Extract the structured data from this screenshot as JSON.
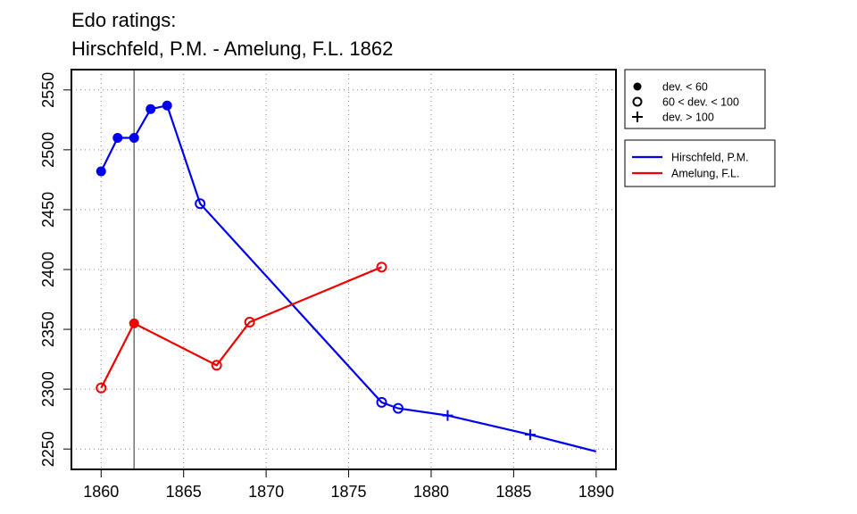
{
  "chart_data": {
    "type": "line",
    "title": [
      "Edo ratings:",
      "Hirschfeld, P.M. - Amelung, F.L. 1862"
    ],
    "xlabel": "",
    "ylabel": "",
    "xlim": [
      1858.2,
      1891.2
    ],
    "ylim": [
      2233,
      2567
    ],
    "x_ticks": [
      1860,
      1865,
      1870,
      1875,
      1880,
      1885,
      1890
    ],
    "y_ticks": [
      2250,
      2300,
      2350,
      2400,
      2450,
      2500,
      2550
    ],
    "grid": "dotted",
    "reference_line_x": 1862,
    "marker_legend": [
      {
        "symbol": "filled",
        "label": "dev. < 60"
      },
      {
        "symbol": "open",
        "label": "60 < dev. < 100"
      },
      {
        "symbol": "plus",
        "label": "dev. > 100"
      }
    ],
    "series": [
      {
        "name": "Hirschfeld, P.M.",
        "color": "#0000ee",
        "points": [
          {
            "x": 1860,
            "y": 2482,
            "marker": "filled"
          },
          {
            "x": 1861,
            "y": 2510,
            "marker": "filled"
          },
          {
            "x": 1862,
            "y": 2510,
            "marker": "filled"
          },
          {
            "x": 1863,
            "y": 2534,
            "marker": "filled"
          },
          {
            "x": 1864,
            "y": 2537,
            "marker": "filled"
          },
          {
            "x": 1866,
            "y": 2455,
            "marker": "open"
          },
          {
            "x": 1877,
            "y": 2289,
            "marker": "open"
          },
          {
            "x": 1878,
            "y": 2284,
            "marker": "open"
          },
          {
            "x": 1881,
            "y": 2278,
            "marker": "plus"
          },
          {
            "x": 1886,
            "y": 2262,
            "marker": "plus"
          },
          {
            "x": 1890,
            "y": 2248,
            "marker": "none"
          }
        ]
      },
      {
        "name": "Amelung, F.L.",
        "color": "#ee0000",
        "points": [
          {
            "x": 1860,
            "y": 2301,
            "marker": "open"
          },
          {
            "x": 1862,
            "y": 2355,
            "marker": "filled"
          },
          {
            "x": 1867,
            "y": 2320,
            "marker": "open"
          },
          {
            "x": 1869,
            "y": 2356,
            "marker": "open"
          },
          {
            "x": 1877,
            "y": 2402,
            "marker": "open"
          }
        ]
      }
    ]
  }
}
